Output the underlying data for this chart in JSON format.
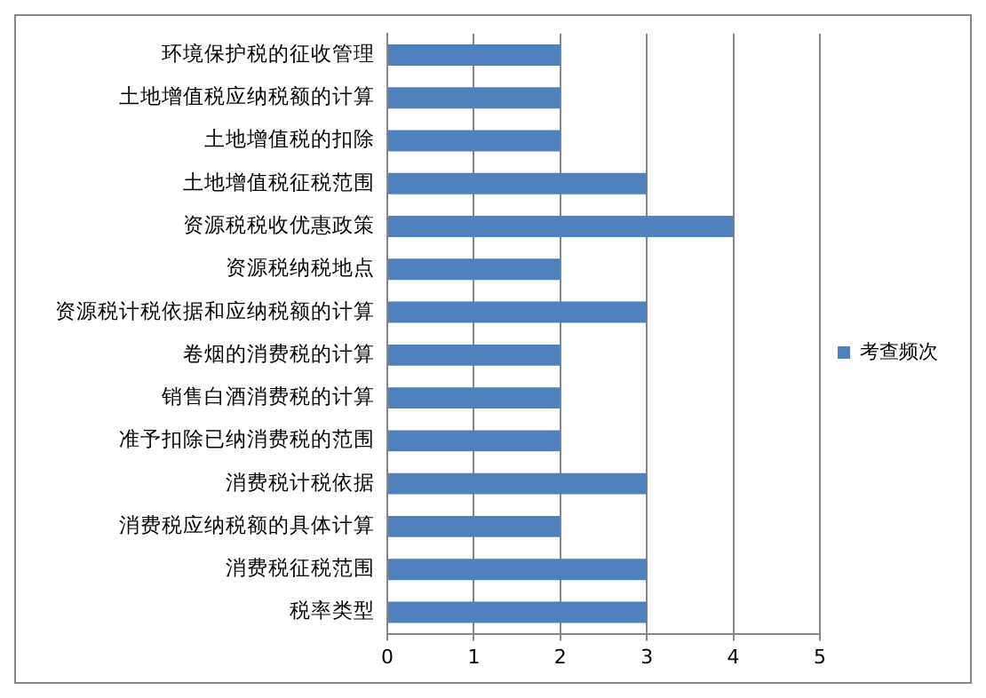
{
  "chart_data": {
    "type": "bar",
    "orientation": "horizontal",
    "categories": [
      "环境保护税的征收管理",
      "土地增值税应纳税额的计算",
      "土地增值税的扣除",
      "土地增值税征税范围",
      "资源税税收优惠政策",
      "资源税纳税地点",
      "资源税计税依据和应纳税额的计算",
      "卷烟的消费税的计算",
      "销售白酒消费税的计算",
      "准予扣除已纳消费税的范围",
      "消费税计税依据",
      "消费税应纳税额的具体计算",
      "消费税征税范围",
      "税率类型"
    ],
    "series": [
      {
        "name": "考查频次",
        "color": "#4f81bd",
        "values": [
          2,
          2,
          2,
          3,
          4,
          2,
          3,
          2,
          2,
          2,
          3,
          2,
          3,
          3
        ]
      }
    ],
    "xlim": [
      0,
      5
    ],
    "xticks": [
      0,
      1,
      2,
      3,
      4,
      5
    ],
    "grid": "x",
    "legend": "right"
  }
}
